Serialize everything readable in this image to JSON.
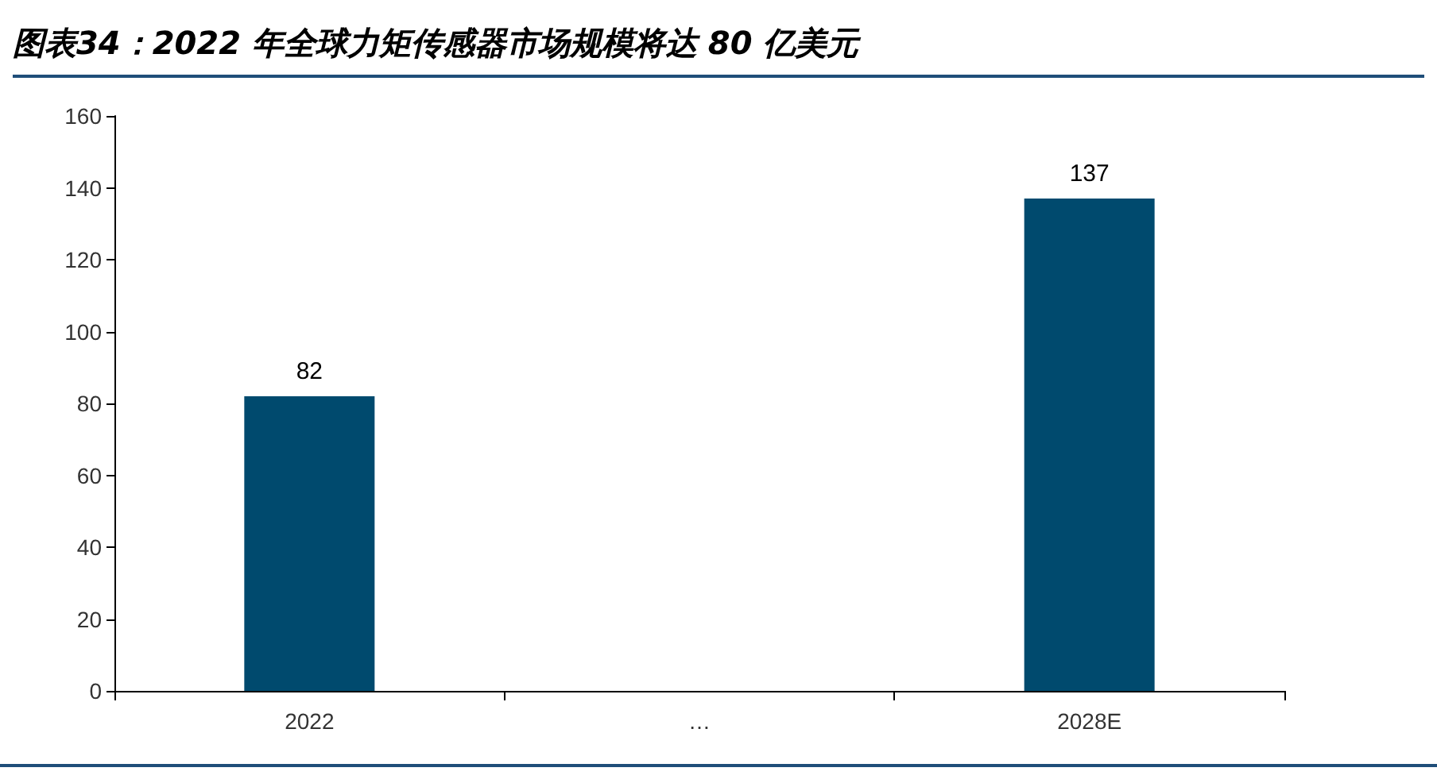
{
  "chart_data": {
    "type": "bar",
    "title": "图表34：2022 年全球力矩传感器市场规模将达 80 亿美元",
    "categories": [
      "2022",
      "…",
      "2028E"
    ],
    "values": [
      82,
      null,
      137
    ],
    "color": "#004a6e",
    "ylim": [
      0,
      160
    ],
    "yticks": [
      0,
      20,
      40,
      60,
      80,
      100,
      120,
      140,
      160
    ],
    "grid": false,
    "data_labels": true
  }
}
